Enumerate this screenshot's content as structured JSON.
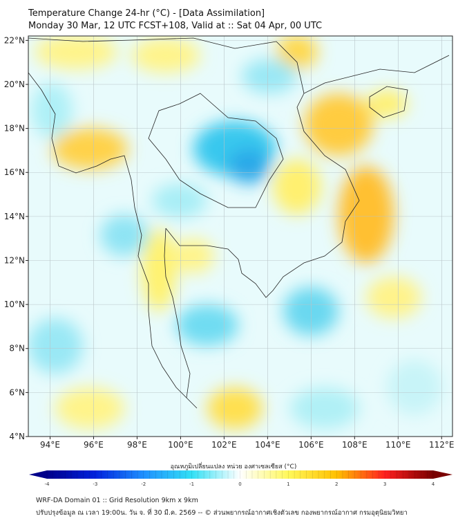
{
  "header": {
    "title": "Temperature Change 24-hr (°C) - [Data Assimilation]",
    "subtitle": "Monday 30 Mar, 12 UTC FCST+108, Valid at :: Sat 04 Apr, 00 UTC"
  },
  "map": {
    "lon_labels": [
      "94°E",
      "96°E",
      "98°E",
      "100°E",
      "102°E",
      "104°E",
      "106°E",
      "108°E",
      "110°E",
      "112°E"
    ],
    "lat_labels": [
      "22°N",
      "20°N",
      "18°N",
      "16°N",
      "14°N",
      "12°N",
      "10°N",
      "8°N",
      "6°N",
      "4°N"
    ],
    "extent": {
      "lon": [
        93,
        112.5
      ],
      "lat": [
        4,
        22.2
      ]
    }
  },
  "colorbar": {
    "label": "อุณหภูมิเปลี่ยนแปลง หน่วย องศาเซลเซียส (°C)",
    "ticks": [
      "-4",
      "-3",
      "-2",
      "-1",
      "0",
      "1",
      "2",
      "3",
      "4"
    ],
    "range": [
      -4,
      4
    ],
    "colors": [
      "#00008b",
      "#0022dd",
      "#1e90ff",
      "#33e0f5",
      "#ffffff",
      "#fff85a",
      "#ffc000",
      "#ff2020",
      "#7a0000"
    ]
  },
  "footer": {
    "line1": "WRF-DA Domain 01 :: Grid Resolution 9km x 9km",
    "line2": "ปรับปรุงข้อมูล ณ เวลา 19:00น. วัน จ. ที่ 30 มี.ค. 2569 -- © ส่วนพยากรณ์อากาศเชิงตัวเลข กองพยากรณ์อากาศ กรมอุตุนิยมวิทยา"
  }
}
